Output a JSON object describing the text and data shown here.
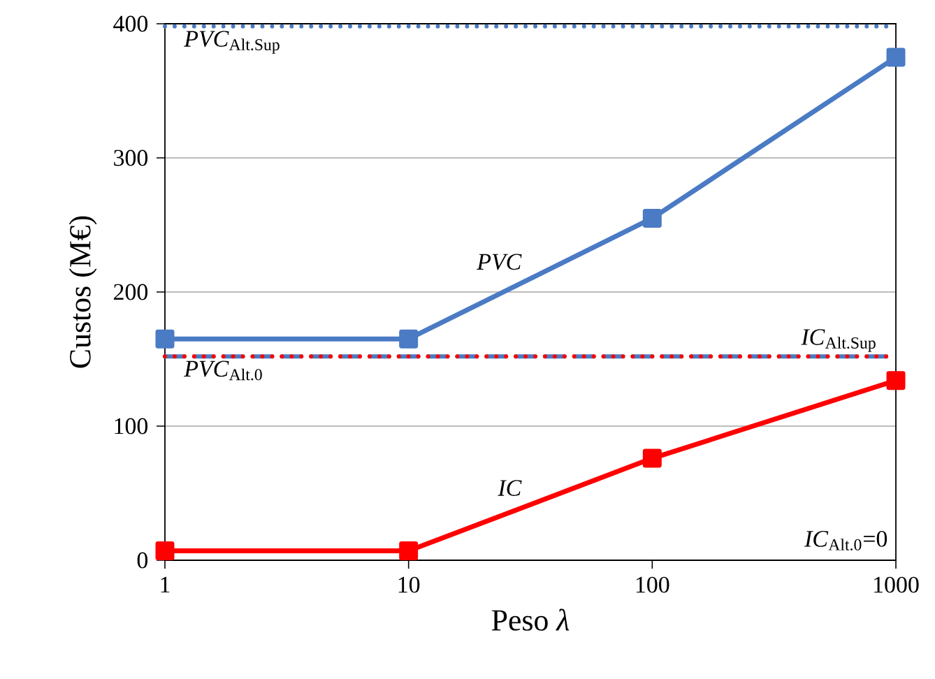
{
  "chart_data": {
    "type": "line",
    "xlabel": "Peso *λ*",
    "ylabel": "Custos (M€)",
    "log": "x",
    "grid": "y",
    "marker": "square",
    "line_style": "solid",
    "legend": false,
    "x": [
      1,
      10,
      100,
      1000
    ],
    "series": [
      {
        "name": "*PVC*",
        "color": "#4a7bc4",
        "values": [
          165,
          165,
          255,
          375
        ]
      },
      {
        "name": "*IC*",
        "color": "#ff0000",
        "values": [
          7,
          7,
          76,
          134
        ]
      }
    ],
    "ref_lines": [
      {
        "axis": "y",
        "value": 398,
        "label": "*PVC*$_{Alt.Sup}$",
        "color": "#4a7bc4",
        "line_style": "dotted"
      },
      {
        "axis": "y",
        "value": 152,
        "label": "*IC*$_{Alt.Sup}$",
        "color": "#ff0000",
        "line_style": "dotted"
      },
      {
        "axis": "y",
        "value": 152,
        "label": "*PVC*$_{Alt.0}$",
        "color": "#4a7bc4",
        "line_style": "dashed"
      }
    ],
    "annotations": [
      "*IC*$_{Alt.0}$=0"
    ],
    "xlim": [
      1,
      1000
    ],
    "xticks": [
      1,
      10,
      100,
      1000
    ],
    "ylim": [
      0,
      400
    ],
    "yticks": [
      0,
      100,
      200,
      300,
      400
    ]
  }
}
